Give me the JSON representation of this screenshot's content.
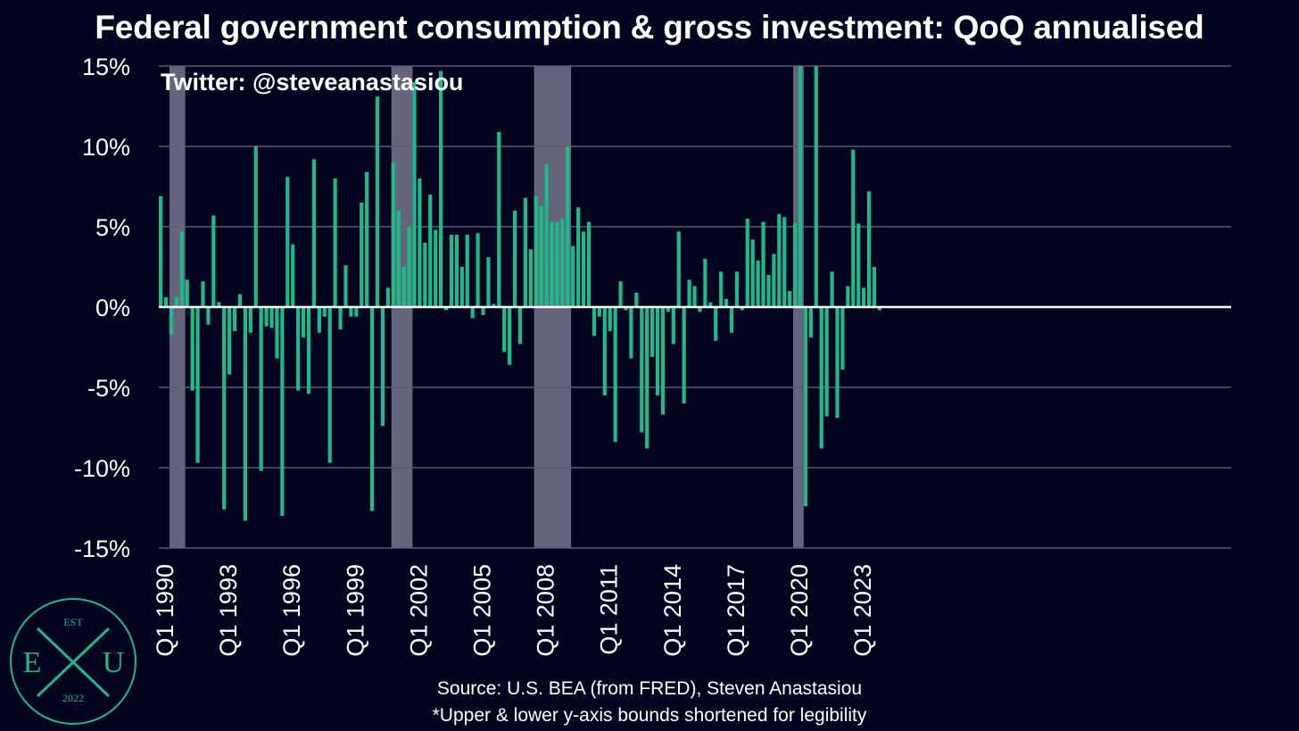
{
  "title": "Federal government consumption & gross investment: QoQ annualised",
  "watermark": "Twitter: @steveanastasiou",
  "source_line": "Source: U.S. BEA (from FRED), Steven Anastasiou",
  "note_line": "*Upper & lower y-axis bounds shortened for legibility",
  "logo": {
    "top": "EST",
    "left": "E",
    "right": "U",
    "bottom": "2022",
    "color": "#1fb98a"
  },
  "colors": {
    "background": "#02031f",
    "bar": "#1fb98a",
    "recession": "#8e8ea4",
    "grid": "#5a5b74",
    "zero_line": "#ffffff"
  },
  "chart_data": {
    "type": "bar",
    "x_start": "Q1 1990",
    "x_tick_labels": [
      "Q1 1990",
      "Q1 1993",
      "Q1 1996",
      "Q1 1999",
      "Q1 2002",
      "Q1 2005",
      "Q1 2008",
      "Q1 2011",
      "Q1 2014",
      "Q1 2017",
      "Q1 2020",
      "Q1 2023"
    ],
    "y_tick_labels": [
      "15%",
      "10%",
      "5%",
      "0%",
      "-5%",
      "-10%",
      "-15%"
    ],
    "ylim": [
      -15,
      15
    ],
    "y_ticks": [
      15,
      10,
      5,
      0,
      -5,
      -10,
      -15
    ],
    "recession_periods": [
      [
        "Q3 1990",
        "Q1 1991"
      ],
      [
        "Q1 2001",
        "Q4 2001"
      ],
      [
        "Q4 2007",
        "Q2 2009"
      ],
      [
        "Q1 2020",
        "Q2 2020"
      ]
    ],
    "series": [
      {
        "values": [
          6.9,
          0.6,
          -1.7,
          0.6,
          4.7,
          1.7,
          -5.2,
          -9.7,
          1.6,
          -1.1,
          5.7,
          0.3,
          -12.6,
          -4.2,
          -1.5,
          0.8,
          -13.3,
          -1.6,
          10.0,
          -10.2,
          -1.2,
          -1.3,
          -3.2,
          -13.0,
          8.1,
          3.9,
          -5.2,
          -1.9,
          -5.4,
          9.2,
          -1.6,
          -0.6,
          -9.7,
          8.0,
          -1.4,
          2.6,
          -0.6,
          -0.6,
          6.5,
          8.4,
          -12.7,
          13.1,
          -7.4,
          1.2,
          9.0,
          6.0,
          2.5,
          5.0,
          14.0,
          8.0,
          4.0,
          7.0,
          4.8,
          14.7,
          -0.2,
          4.5,
          4.5,
          2.5,
          4.5,
          -0.7,
          4.6,
          -0.5,
          3.1,
          0.2,
          10.9,
          -2.8,
          -3.6,
          6.0,
          -2.3,
          6.8,
          3.6,
          6.9,
          6.3,
          8.9,
          5.3,
          5.3,
          5.5,
          10.0,
          3.8,
          6.2,
          4.7,
          5.3,
          -1.8,
          -0.6,
          -5.5,
          -1.5,
          -8.4,
          1.6,
          -0.2,
          -3.2,
          0.9,
          -7.8,
          -8.8,
          -3.1,
          -5.5,
          -6.7,
          -0.3,
          -2.3,
          4.7,
          -6.0,
          1.7,
          1.3,
          -0.3,
          3.0,
          0.3,
          -2.1,
          2.2,
          0.5,
          -1.6,
          2.2,
          -0.2,
          5.5,
          4.2,
          2.9,
          5.3,
          2.0,
          3.3,
          5.8,
          5.6,
          1.0,
          5.2,
          15.0,
          -12.4,
          -1.9,
          15.0,
          -8.8,
          -6.8,
          2.2,
          -6.9,
          -3.9,
          1.3,
          9.8,
          5.2,
          1.2,
          7.2,
          2.5,
          -0.2
        ]
      }
    ]
  }
}
